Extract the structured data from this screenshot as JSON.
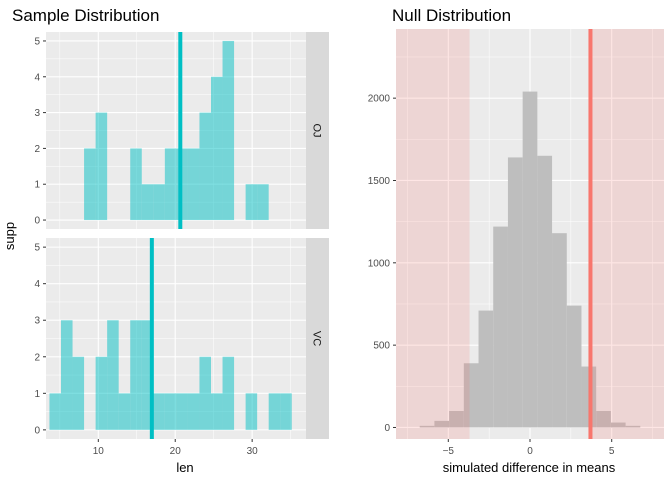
{
  "chart_data": [
    {
      "type": "bar",
      "title": "Sample Distribution",
      "xlabel": "len",
      "ylabel": "supp",
      "xlim": [
        3.2,
        37.0
      ],
      "xticks": [
        10,
        20,
        30
      ],
      "ylim": [
        -0.25,
        5.25
      ],
      "yticks": [
        0,
        1,
        2,
        3,
        4,
        5
      ],
      "bin_width": 1.5,
      "fill_color": "#00bfc4",
      "line_color": "#00bfc4",
      "panels": [
        {
          "label": "OJ",
          "mean_line": 20.66,
          "bins": [
            {
              "x": 8.9,
              "count": 2
            },
            {
              "x": 10.4,
              "count": 3
            },
            {
              "x": 14.9,
              "count": 2
            },
            {
              "x": 16.4,
              "count": 1
            },
            {
              "x": 17.9,
              "count": 1
            },
            {
              "x": 19.4,
              "count": 2
            },
            {
              "x": 20.9,
              "count": 2
            },
            {
              "x": 22.4,
              "count": 2
            },
            {
              "x": 23.9,
              "count": 3
            },
            {
              "x": 25.4,
              "count": 4
            },
            {
              "x": 26.9,
              "count": 5
            },
            {
              "x": 29.9,
              "count": 1
            },
            {
              "x": 31.4,
              "count": 1
            }
          ]
        },
        {
          "label": "VC",
          "mean_line": 16.96,
          "bins": [
            {
              "x": 4.4,
              "count": 1
            },
            {
              "x": 5.9,
              "count": 3
            },
            {
              "x": 7.4,
              "count": 2
            },
            {
              "x": 10.4,
              "count": 2
            },
            {
              "x": 11.9,
              "count": 3
            },
            {
              "x": 13.4,
              "count": 1
            },
            {
              "x": 14.9,
              "count": 3
            },
            {
              "x": 16.4,
              "count": 3
            },
            {
              "x": 17.9,
              "count": 1
            },
            {
              "x": 19.4,
              "count": 1
            },
            {
              "x": 20.9,
              "count": 1
            },
            {
              "x": 22.4,
              "count": 1
            },
            {
              "x": 23.9,
              "count": 2
            },
            {
              "x": 25.4,
              "count": 1
            },
            {
              "x": 26.9,
              "count": 2
            },
            {
              "x": 29.9,
              "count": 1
            },
            {
              "x": 32.9,
              "count": 1
            },
            {
              "x": 34.4,
              "count": 1
            }
          ]
        }
      ]
    },
    {
      "type": "bar",
      "title": "Null Distribution",
      "xlabel": "simulated difference in means",
      "ylabel": "",
      "xlim": [
        -8.2,
        8.2
      ],
      "xticks": [
        -5,
        0,
        5
      ],
      "ylim": [
        -70,
        2420
      ],
      "yticks": [
        0,
        500,
        1000,
        1500,
        2000
      ],
      "bin_width": 0.9,
      "bar_color": "#bebebe",
      "observed_line": 3.7,
      "observed_line_color": "#f8766d",
      "shade_color": "#f8766d",
      "shade_regions": [
        [
          -8.2,
          -3.7
        ],
        [
          3.7,
          8.2
        ]
      ],
      "bins": [
        {
          "x": -6.3,
          "count": 10
        },
        {
          "x": -5.4,
          "count": 40
        },
        {
          "x": -4.5,
          "count": 100
        },
        {
          "x": -3.6,
          "count": 390
        },
        {
          "x": -2.7,
          "count": 710
        },
        {
          "x": -1.8,
          "count": 1220
        },
        {
          "x": -0.9,
          "count": 1640
        },
        {
          "x": 0.0,
          "count": 2040
        },
        {
          "x": 0.9,
          "count": 1650
        },
        {
          "x": 1.8,
          "count": 1180
        },
        {
          "x": 2.7,
          "count": 740
        },
        {
          "x": 3.6,
          "count": 370
        },
        {
          "x": 4.5,
          "count": 100
        },
        {
          "x": 5.4,
          "count": 30
        },
        {
          "x": 6.3,
          "count": 10
        }
      ]
    }
  ]
}
